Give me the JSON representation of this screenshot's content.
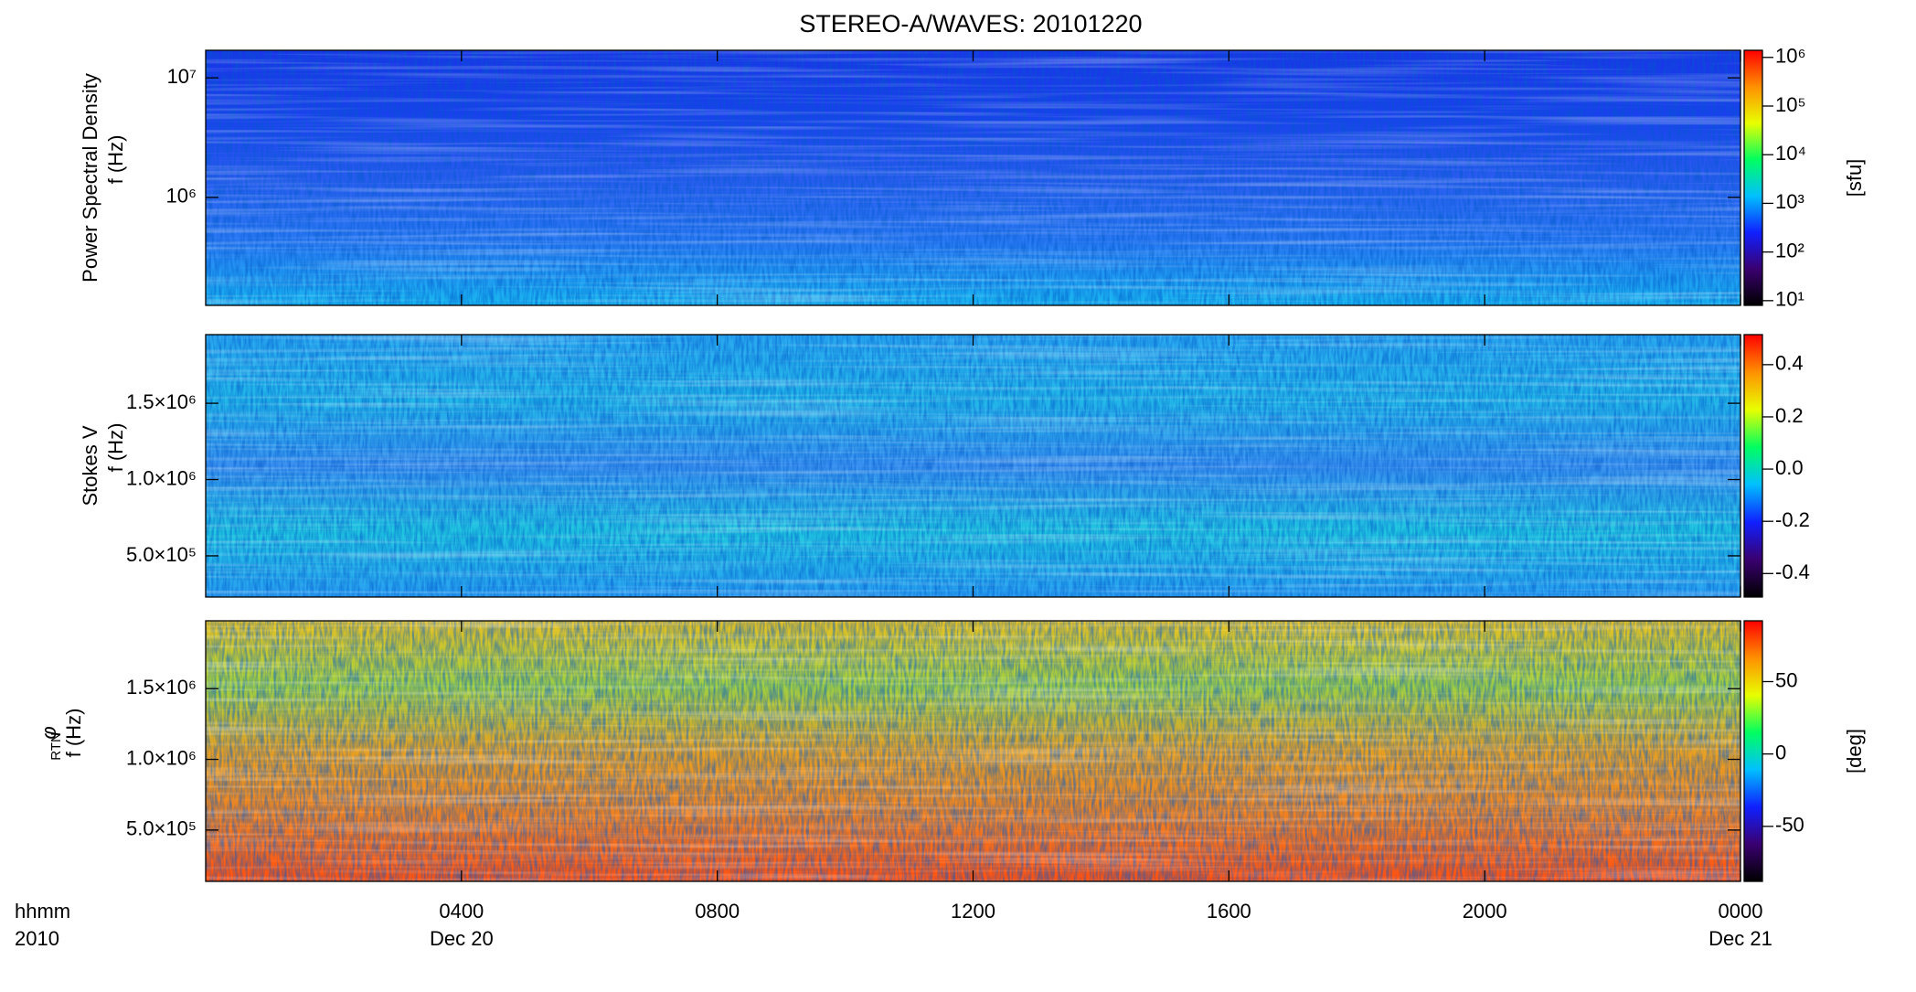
{
  "title": "STEREO-A/WAVES: 20101220",
  "x_axis": {
    "label_lines": [
      "hhmm",
      "2010"
    ],
    "xlim": [
      0,
      24
    ],
    "xticks": [
      {
        "value": 4,
        "label": "0400"
      },
      {
        "value": 8,
        "label": "0800"
      },
      {
        "value": 12,
        "label": "1200"
      },
      {
        "value": 16,
        "label": "1600"
      },
      {
        "value": 20,
        "label": "2000"
      },
      {
        "value": 24,
        "label": "0000"
      }
    ],
    "dates": [
      {
        "value": 4,
        "label": "Dec 20"
      },
      {
        "value": 24,
        "label": "Dec 21"
      }
    ]
  },
  "chart_data": [
    {
      "type": "heatmap",
      "ylabel": [
        "Power Spectral Density",
        "f (Hz)"
      ],
      "log": true,
      "ylim": [
        125000,
        17000000
      ],
      "yticks": [
        {
          "value": 10000000,
          "label": "10⁷"
        },
        {
          "value": 1000000,
          "label": "10⁶"
        }
      ],
      "colormap": [
        "#000000",
        "#3a0070",
        "#1020ff",
        "#00c0ff",
        "#00ff60",
        "#e8ff00",
        "#ff9000",
        "#ff0000"
      ],
      "fill": [
        "#1a35e8",
        "#1a40ee",
        "#2a5cf0",
        "#2b7af5",
        "#19b8f0"
      ],
      "colorbar": {
        "label": "[sfu]",
        "log": true,
        "lim": [
          8,
          1400000
        ],
        "ticks": [
          {
            "value": 10,
            "label": "10¹"
          },
          {
            "value": 100,
            "label": "10²"
          },
          {
            "value": 1000,
            "label": "10³"
          },
          {
            "value": 10000,
            "label": "10⁴"
          },
          {
            "value": 100000,
            "label": "10⁵"
          },
          {
            "value": 1000000,
            "label": "10⁶"
          }
        ]
      }
    },
    {
      "type": "heatmap",
      "ylabel": [
        "Stokes V",
        "f (Hz)"
      ],
      "log": false,
      "ylim": [
        230000,
        1950000
      ],
      "yticks": [
        {
          "value": 1500000,
          "label": "1.5×10⁶"
        },
        {
          "value": 1000000,
          "label": "1.0×10⁶"
        },
        {
          "value": 500000,
          "label": "5.0×10⁵"
        }
      ],
      "colormap": [
        "#000000",
        "#3a0070",
        "#1020ff",
        "#00c0ff",
        "#00ff60",
        "#e8ff00",
        "#ff9000",
        "#ff0000"
      ],
      "fill": [
        "#2aa8f0",
        "#22b8e8",
        "#3a90f0",
        "#20c8e0",
        "#2a9ef2"
      ],
      "colorbar": {
        "label": "",
        "log": false,
        "lim": [
          -0.49,
          0.515
        ],
        "ticks": [
          0.4,
          0.2,
          {
            "value": 0,
            "label": "0.0"
          },
          -0.2,
          -0.4
        ]
      }
    },
    {
      "type": "heatmap",
      "ylabel": [
        "φ",
        "RTN",
        "f (Hz)"
      ],
      "log": false,
      "ylim": [
        137000,
        1980000
      ],
      "yticks": [
        {
          "value": 1500000,
          "label": "1.5×10⁶"
        },
        {
          "value": 1000000,
          "label": "1.0×10⁶"
        },
        {
          "value": 500000,
          "label": "5.0×10⁵"
        }
      ],
      "colormap": [
        "#000000",
        "#3a0070",
        "#1020ff",
        "#00c0ff",
        "#00ff60",
        "#e8ff00",
        "#ff9000",
        "#ff0000"
      ],
      "fill": [
        "#e8c020",
        "#a0d040",
        "#e8a020",
        "#f08020",
        "#ff5010"
      ],
      "colorbar": {
        "label": "[deg]",
        "log": false,
        "lim": [
          -88,
          92
        ],
        "ticks": [
          50,
          0,
          -50
        ]
      }
    }
  ]
}
